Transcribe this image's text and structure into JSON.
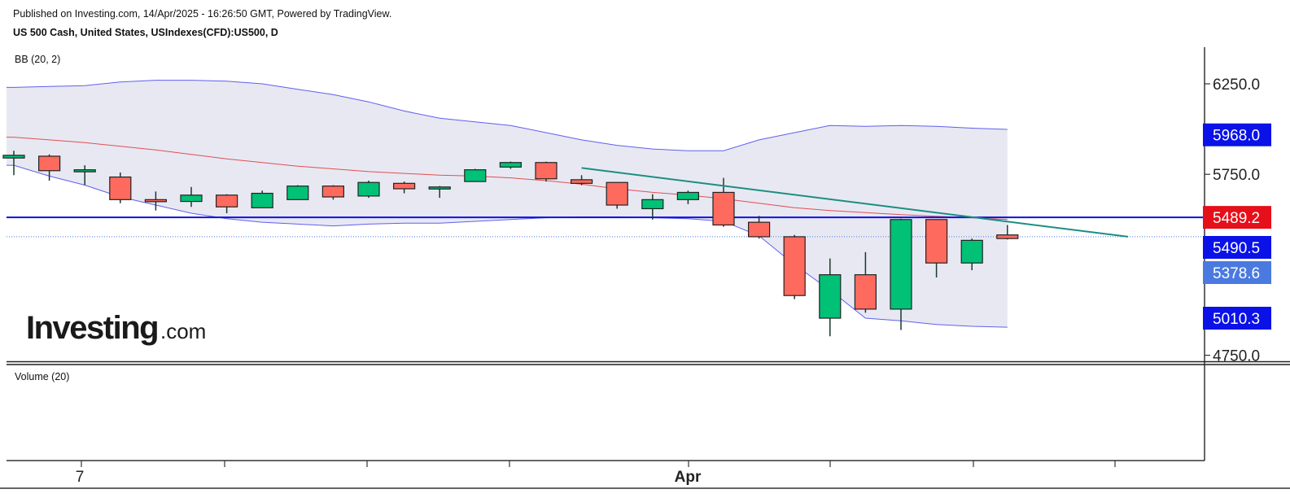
{
  "header": {
    "published": "Published on Investing.com, 14/Apr/2025 - 16:26:50 GMT, Powered by TradingView.",
    "instrument": "US 500 Cash, United States, USIndexes(CFD):US500, D"
  },
  "indicators": {
    "bb_label": "BB (20, 2)",
    "volume_label": "Volume (20)"
  },
  "logo": {
    "main": "Investing",
    "suffix": ".com"
  },
  "colors": {
    "up": "#00c176",
    "down": "#ff6a5f",
    "bb_band": "#6060ee",
    "bb_fill": "#e6e6f2",
    "bb_basis": "#e05050",
    "trendline": "#1a8f80",
    "hline": "#1010e0"
  },
  "chart_data": {
    "type": "candlestick",
    "interval": "D",
    "ylim": [
      4720,
      6500
    ],
    "y_ticks": [
      "6250.0",
      "5750.0",
      "4750.0"
    ],
    "x_ticks": [
      "7",
      "Apr"
    ],
    "price_tags": [
      {
        "label": "5968.0",
        "value": 5968.0,
        "color": "#0a12e8"
      },
      {
        "label": "5489.2",
        "value": 5489.2,
        "color": "#e5101a"
      },
      {
        "label": "5490.5",
        "value": 5490.5,
        "color": "#0a12e8"
      },
      {
        "label": "5378.6",
        "value": 5378.6,
        "color": "#4a7ae0"
      },
      {
        "label": "5010.3",
        "value": 5010.3,
        "color": "#0a12e8"
      }
    ],
    "horizontal_line": 5512,
    "dotted_line": 5405,
    "candles": [
      {
        "o": 5840,
        "h": 5880,
        "l": 5745,
        "c": 5855
      },
      {
        "o": 5850,
        "h": 5860,
        "l": 5715,
        "c": 5770
      },
      {
        "o": 5770,
        "h": 5800,
        "l": 5690,
        "c": 5775
      },
      {
        "o": 5735,
        "h": 5760,
        "l": 5590,
        "c": 5610
      },
      {
        "o": 5610,
        "h": 5655,
        "l": 5550,
        "c": 5600
      },
      {
        "o": 5600,
        "h": 5680,
        "l": 5570,
        "c": 5635
      },
      {
        "o": 5635,
        "h": 5640,
        "l": 5535,
        "c": 5570
      },
      {
        "o": 5565,
        "h": 5660,
        "l": 5565,
        "c": 5645
      },
      {
        "o": 5610,
        "h": 5690,
        "l": 5610,
        "c": 5685
      },
      {
        "o": 5685,
        "h": 5690,
        "l": 5610,
        "c": 5625
      },
      {
        "o": 5630,
        "h": 5715,
        "l": 5620,
        "c": 5705
      },
      {
        "o": 5700,
        "h": 5710,
        "l": 5645,
        "c": 5670
      },
      {
        "o": 5670,
        "h": 5685,
        "l": 5620,
        "c": 5680
      },
      {
        "o": 5710,
        "h": 5780,
        "l": 5710,
        "c": 5775
      },
      {
        "o": 5790,
        "h": 5820,
        "l": 5780,
        "c": 5815
      },
      {
        "o": 5815,
        "h": 5820,
        "l": 5710,
        "c": 5725
      },
      {
        "o": 5720,
        "h": 5745,
        "l": 5690,
        "c": 5700
      },
      {
        "o": 5705,
        "h": 5705,
        "l": 5560,
        "c": 5580
      },
      {
        "o": 5560,
        "h": 5640,
        "l": 5500,
        "c": 5610
      },
      {
        "o": 5610,
        "h": 5660,
        "l": 5585,
        "c": 5650
      },
      {
        "o": 5650,
        "h": 5730,
        "l": 5460,
        "c": 5470
      },
      {
        "o": 5485,
        "h": 5520,
        "l": 5395,
        "c": 5405
      },
      {
        "o": 5405,
        "h": 5415,
        "l": 5060,
        "c": 5080
      },
      {
        "o": 4955,
        "h": 5285,
        "l": 4855,
        "c": 5195
      },
      {
        "o": 5195,
        "h": 5320,
        "l": 4985,
        "c": 5005
      },
      {
        "o": 5005,
        "h": 5505,
        "l": 4890,
        "c": 5500
      },
      {
        "o": 5500,
        "h": 5500,
        "l": 5180,
        "c": 5260
      },
      {
        "o": 5260,
        "h": 5395,
        "l": 5220,
        "c": 5385
      },
      {
        "o": 5415,
        "h": 5470,
        "l": 5390,
        "c": 5395
      }
    ],
    "bb_upper": [
      6230,
      6235,
      6240,
      6260,
      6270,
      6270,
      6265,
      6250,
      6220,
      6190,
      6150,
      6100,
      6060,
      6040,
      6020,
      5980,
      5940,
      5910,
      5890,
      5880,
      5880,
      5940,
      5980,
      6020,
      6015,
      6020,
      6015,
      6005,
      5998
    ],
    "bb_basis": [
      5955,
      5940,
      5925,
      5905,
      5885,
      5860,
      5835,
      5815,
      5795,
      5780,
      5765,
      5755,
      5745,
      5740,
      5730,
      5715,
      5695,
      5670,
      5650,
      5635,
      5615,
      5590,
      5565,
      5550,
      5538,
      5527,
      5518,
      5510,
      5500
    ],
    "bb_lower": [
      5800,
      5740,
      5690,
      5625,
      5580,
      5535,
      5505,
      5485,
      5475,
      5465,
      5475,
      5480,
      5480,
      5490,
      5500,
      5510,
      5515,
      5515,
      5510,
      5505,
      5490,
      5410,
      5250,
      5110,
      4955,
      4940,
      4920,
      4910,
      4905
    ],
    "trendline": {
      "from": [
        16,
        5785
      ],
      "to": [
        31.4,
        5405
      ]
    }
  }
}
